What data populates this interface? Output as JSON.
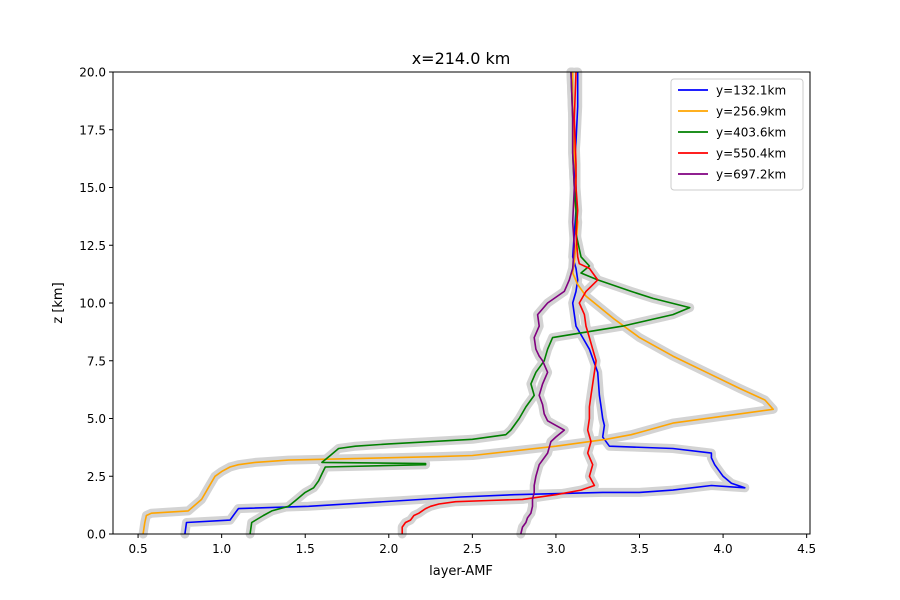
{
  "chart_data": {
    "type": "line",
    "title": "x=214.0 km",
    "xlabel": "layer-AMF",
    "ylabel": "z [km]",
    "xlim": [
      0.35,
      4.52
    ],
    "ylim": [
      0,
      20
    ],
    "xticks": [
      0.5,
      1.0,
      1.5,
      2.0,
      2.5,
      3.0,
      3.5,
      4.0,
      4.5
    ],
    "xtick_labels": [
      "0.5",
      "1.0",
      "1.5",
      "2.0",
      "2.5",
      "3.0",
      "3.5",
      "4.0",
      "4.5"
    ],
    "yticks": [
      0,
      2.5,
      5,
      7.5,
      10,
      12.5,
      15,
      17.5,
      20
    ],
    "ytick_labels": [
      "0.0",
      "2.5",
      "5.0",
      "7.5",
      "10.0",
      "12.5",
      "15.0",
      "17.5",
      "20.0"
    ],
    "grid": false,
    "legend_position": "top-right",
    "uncertainty_color": "#d3d3d3",
    "series": [
      {
        "name": "y=132.1km",
        "color": "#0000ff",
        "x": [
          0.78,
          0.79,
          1.05,
          1.08,
          1.1,
          1.52,
          2.43,
          2.75,
          3.28,
          3.5,
          3.7,
          3.93,
          4.13,
          4.05,
          4.0,
          3.95,
          3.93,
          3.93,
          3.7,
          3.32,
          3.28,
          3.29,
          3.28,
          3.27,
          3.26,
          3.25,
          3.2,
          3.16,
          3.12,
          3.1,
          3.12,
          3.13,
          3.12,
          3.1,
          3.11,
          3.12,
          3.12,
          3.11,
          3.12,
          3.13,
          3.13
        ],
        "y": [
          0.0,
          0.5,
          0.6,
          0.9,
          1.1,
          1.2,
          1.6,
          1.7,
          1.8,
          1.8,
          1.9,
          2.1,
          2.0,
          2.2,
          2.5,
          3.0,
          3.3,
          3.5,
          3.7,
          3.8,
          4.2,
          4.7,
          5.0,
          5.5,
          6.0,
          7.0,
          8.0,
          8.5,
          9.0,
          10.0,
          10.5,
          11.0,
          11.5,
          12.0,
          13.0,
          14.0,
          15.0,
          16.0,
          17.0,
          18.5,
          20.0
        ]
      },
      {
        "name": "y=256.9km",
        "color": "#ffa500",
        "x": [
          0.53,
          0.54,
          0.55,
          0.58,
          0.8,
          0.88,
          0.92,
          0.96,
          1.0,
          1.05,
          1.1,
          1.2,
          1.4,
          2.3,
          2.5,
          3.0,
          3.3,
          3.45,
          3.55,
          3.7,
          4.0,
          4.3,
          4.25,
          4.1,
          3.9,
          3.7,
          3.5,
          3.35,
          3.18,
          3.13,
          3.1,
          3.11,
          3.12,
          3.13,
          3.11,
          3.12,
          3.11,
          3.11,
          3.1,
          3.1
        ],
        "y": [
          0.0,
          0.5,
          0.8,
          0.9,
          1.0,
          1.5,
          2.0,
          2.5,
          2.7,
          2.9,
          3.0,
          3.1,
          3.2,
          3.35,
          3.4,
          3.8,
          4.1,
          4.3,
          4.5,
          4.8,
          5.1,
          5.4,
          5.8,
          6.3,
          7.0,
          7.7,
          8.5,
          9.3,
          10.3,
          10.8,
          11.3,
          11.8,
          12.5,
          13.5,
          14.5,
          15.5,
          16.5,
          17.5,
          18.5,
          20.0
        ]
      },
      {
        "name": "y=403.6km",
        "color": "#008000",
        "x": [
          1.17,
          1.18,
          1.25,
          1.3,
          1.4,
          1.45,
          1.5,
          1.55,
          1.58,
          1.6,
          1.62,
          2.22,
          2.22,
          1.6,
          1.65,
          1.7,
          1.8,
          2.0,
          2.5,
          2.7,
          2.73,
          2.78,
          2.82,
          2.87,
          2.85,
          2.88,
          2.93,
          2.95,
          2.98,
          3.4,
          3.7,
          3.8,
          3.58,
          3.45,
          3.25,
          3.15,
          3.2,
          3.15,
          3.12,
          3.12,
          3.11,
          3.1,
          3.1,
          3.09
        ],
        "y": [
          0.0,
          0.5,
          0.8,
          1.0,
          1.2,
          1.5,
          1.8,
          2.0,
          2.3,
          2.6,
          2.9,
          3.0,
          3.05,
          3.1,
          3.4,
          3.7,
          3.8,
          3.9,
          4.1,
          4.3,
          4.5,
          5.0,
          5.5,
          6.0,
          6.5,
          7.0,
          7.5,
          8.0,
          8.5,
          9.0,
          9.5,
          9.8,
          10.2,
          10.5,
          11.0,
          11.3,
          11.6,
          12.0,
          13.0,
          14.0,
          15.0,
          16.5,
          18.0,
          20.0
        ]
      },
      {
        "name": "y=550.4km",
        "color": "#ff0000",
        "x": [
          2.08,
          2.08,
          2.1,
          2.13,
          2.15,
          2.18,
          2.22,
          2.25,
          2.3,
          2.4,
          2.6,
          2.8,
          3.0,
          3.15,
          3.23,
          3.2,
          3.22,
          3.19,
          3.21,
          3.19,
          3.2,
          3.2,
          3.21,
          3.22,
          3.24,
          3.22,
          3.2,
          3.18,
          3.17,
          3.14,
          3.18,
          3.25,
          3.2,
          3.14,
          3.13,
          3.12,
          3.13,
          3.12,
          3.12,
          3.11,
          3.12
        ],
        "y": [
          0.0,
          0.3,
          0.5,
          0.6,
          0.8,
          0.9,
          1.1,
          1.2,
          1.3,
          1.4,
          1.45,
          1.5,
          1.7,
          1.9,
          2.1,
          2.5,
          3.0,
          3.5,
          4.0,
          4.5,
          5.0,
          5.5,
          6.0,
          6.5,
          7.5,
          8.0,
          8.5,
          9.0,
          9.5,
          10.0,
          10.5,
          11.0,
          11.5,
          11.7,
          12.0,
          13.0,
          14.0,
          15.0,
          16.0,
          18.0,
          20.0
        ]
      },
      {
        "name": "y=697.2km",
        "color": "#800080",
        "x": [
          2.79,
          2.8,
          2.82,
          2.83,
          2.85,
          2.86,
          2.86,
          2.87,
          2.87,
          2.88,
          2.9,
          2.95,
          2.97,
          3.0,
          3.05,
          3.0,
          2.95,
          2.93,
          2.92,
          2.9,
          2.92,
          2.95,
          2.92,
          2.9,
          2.88,
          2.87,
          2.9,
          2.89,
          2.95,
          3.05,
          3.08,
          3.1,
          3.11,
          3.1,
          3.11,
          3.1,
          3.1,
          3.09
        ],
        "y": [
          0.0,
          0.3,
          0.5,
          0.7,
          0.9,
          1.2,
          1.5,
          1.8,
          2.1,
          2.5,
          3.0,
          3.5,
          4.0,
          4.2,
          4.5,
          4.7,
          4.9,
          5.2,
          5.6,
          6.0,
          6.5,
          7.0,
          7.5,
          7.7,
          8.0,
          8.5,
          9.0,
          9.5,
          10.0,
          10.5,
          11.0,
          11.5,
          12.5,
          13.5,
          15.0,
          16.5,
          18.0,
          20.0
        ]
      }
    ]
  }
}
